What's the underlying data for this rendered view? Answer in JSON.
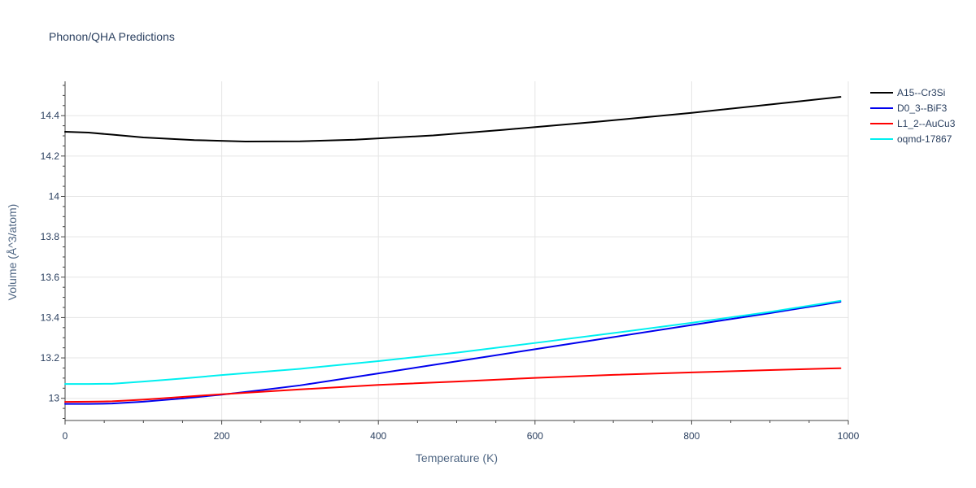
{
  "chart_data": {
    "type": "line",
    "title": "Phonon/QHA Predictions",
    "xlabel": "Temperature (K)",
    "ylabel": "Volume (Å^3/atom)",
    "xlim": [
      0,
      1000
    ],
    "ylim": [
      12.89,
      14.57
    ],
    "xticks": [
      0,
      200,
      400,
      600,
      800,
      1000
    ],
    "xtick_labels": [
      "0",
      "200",
      "400",
      "600",
      "800",
      "1000"
    ],
    "yticks": [
      13,
      13.2,
      13.4,
      13.6,
      13.8,
      14,
      14.2,
      14.4
    ],
    "ytick_labels": [
      "13",
      "13.2",
      "13.4",
      "13.6",
      "13.8",
      "14",
      "14.2",
      "14.4"
    ],
    "grid": true,
    "legend_position": "top-right",
    "series": [
      {
        "name": "A15--Cr3Si",
        "color": "#000000",
        "x": [
          0,
          30,
          60,
          100,
          165,
          230,
          300,
          370,
          470,
          560,
          680,
          800,
          900,
          990
        ],
        "y": [
          14.32,
          14.316,
          14.306,
          14.292,
          14.279,
          14.272,
          14.273,
          14.281,
          14.302,
          14.33,
          14.37,
          14.414,
          14.455,
          14.493
        ]
      },
      {
        "name": "D0_3--BiF3",
        "color": "#0000ee",
        "x": [
          0,
          30,
          60,
          100,
          150,
          200,
          250,
          300,
          400,
          500,
          600,
          700,
          800,
          900,
          990
        ],
        "y": [
          12.972,
          12.972,
          12.974,
          12.983,
          12.999,
          13.018,
          13.04,
          13.064,
          13.123,
          13.183,
          13.243,
          13.303,
          13.363,
          13.422,
          13.478
        ]
      },
      {
        "name": "L1_2--AuCu3",
        "color": "#ff0000",
        "x": [
          0,
          30,
          60,
          100,
          150,
          200,
          300,
          400,
          500,
          600,
          700,
          800,
          900,
          990
        ],
        "y": [
          12.982,
          12.983,
          12.985,
          12.993,
          13.007,
          13.02,
          13.044,
          13.066,
          13.083,
          13.101,
          13.116,
          13.128,
          13.14,
          13.149
        ]
      },
      {
        "name": "oqmd-17867",
        "color": "#00f0f0",
        "x": [
          0,
          30,
          60,
          100,
          150,
          200,
          300,
          400,
          500,
          600,
          700,
          800,
          900,
          990
        ],
        "y": [
          13.071,
          13.071,
          13.072,
          13.083,
          13.098,
          13.115,
          13.146,
          13.184,
          13.226,
          13.274,
          13.323,
          13.374,
          13.428,
          13.483
        ]
      }
    ]
  }
}
